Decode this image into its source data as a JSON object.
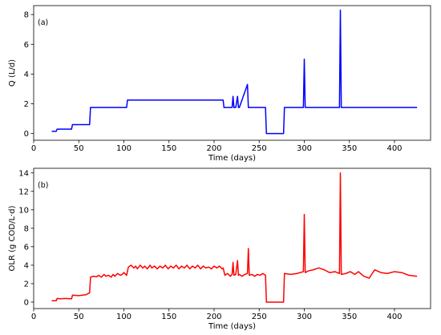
{
  "chart_data": [
    {
      "type": "line",
      "panel_label": "(a)",
      "xlabel": "Time (days)",
      "ylabel": "Q (L/d)",
      "xlim": [
        0,
        440
      ],
      "ylim": [
        -0.45,
        8.6
      ],
      "xticks": [
        0,
        50,
        100,
        150,
        200,
        250,
        300,
        350,
        400
      ],
      "yticks": [
        0,
        2,
        4,
        6,
        8
      ],
      "grid": false,
      "color": "#0000ff",
      "series": [
        {
          "x": [
            20,
            25,
            26,
            42,
            43,
            62,
            63,
            103,
            104,
            210,
            211,
            220,
            221,
            222,
            224,
            226,
            227,
            228,
            237,
            238,
            239,
            257,
            258,
            277,
            278,
            299,
            300,
            301,
            339,
            340,
            341,
            425
          ],
          "values": [
            0.15,
            0.15,
            0.3,
            0.3,
            0.6,
            0.6,
            1.75,
            1.75,
            2.25,
            2.25,
            1.75,
            1.75,
            2.5,
            1.75,
            1.75,
            2.5,
            1.75,
            1.75,
            3.3,
            1.75,
            1.75,
            1.75,
            0.0,
            0.0,
            1.75,
            1.75,
            5.0,
            1.75,
            1.75,
            8.3,
            1.75,
            1.75
          ]
        }
      ]
    },
    {
      "type": "line",
      "panel_label": "(b)",
      "xlabel": "Time (days)",
      "ylabel": "OLR (g COD/L·d)",
      "xlim": [
        0,
        440
      ],
      "ylim": [
        -0.7,
        14.5
      ],
      "xticks": [
        0,
        50,
        100,
        150,
        200,
        250,
        300,
        350,
        400
      ],
      "yticks": [
        0,
        2,
        4,
        6,
        8,
        10,
        12,
        14
      ],
      "grid": false,
      "color": "#ff0000",
      "series": [
        {
          "x": [
            20,
            25,
            26,
            30,
            35,
            42,
            43,
            50,
            58,
            62,
            63,
            66,
            70,
            72,
            75,
            78,
            80,
            83,
            86,
            88,
            90,
            93,
            96,
            98,
            100,
            103,
            105,
            108,
            111,
            113,
            115,
            118,
            121,
            123,
            126,
            129,
            131,
            134,
            137,
            140,
            143,
            146,
            149,
            152,
            155,
            158,
            161,
            164,
            167,
            170,
            173,
            176,
            179,
            182,
            185,
            188,
            191,
            194,
            197,
            200,
            203,
            206,
            209,
            210,
            212,
            215,
            218,
            220,
            221,
            222,
            224,
            226,
            227,
            228,
            231,
            234,
            237,
            238,
            239,
            242,
            245,
            248,
            251,
            254,
            257,
            258,
            277,
            278,
            285,
            292,
            299,
            300,
            301,
            305,
            310,
            316,
            322,
            328,
            334,
            339,
            340,
            341,
            346,
            351,
            356,
            360,
            366,
            372,
            378,
            385,
            392,
            400,
            408,
            416,
            425
          ],
          "values": [
            0.15,
            0.15,
            0.4,
            0.35,
            0.4,
            0.35,
            0.75,
            0.7,
            0.8,
            1.0,
            2.7,
            2.8,
            2.75,
            2.9,
            2.7,
            3.0,
            2.8,
            2.9,
            2.7,
            3.0,
            2.8,
            3.1,
            2.9,
            3.0,
            3.2,
            2.9,
            3.8,
            4.0,
            3.7,
            3.9,
            3.6,
            4.0,
            3.7,
            3.9,
            3.6,
            4.0,
            3.7,
            3.9,
            3.6,
            3.9,
            3.7,
            4.0,
            3.6,
            3.9,
            3.7,
            4.0,
            3.6,
            3.9,
            3.7,
            4.0,
            3.6,
            3.9,
            3.7,
            4.0,
            3.6,
            3.9,
            3.7,
            3.8,
            3.6,
            3.9,
            3.7,
            3.9,
            3.6,
            3.7,
            2.9,
            3.1,
            2.8,
            3.0,
            4.3,
            2.9,
            3.0,
            4.5,
            2.9,
            3.0,
            2.8,
            3.0,
            3.1,
            5.8,
            2.9,
            3.0,
            2.8,
            3.0,
            2.9,
            3.1,
            2.9,
            0.0,
            0.0,
            3.1,
            3.0,
            3.1,
            3.3,
            9.5,
            3.2,
            3.4,
            3.5,
            3.7,
            3.5,
            3.2,
            3.3,
            3.1,
            14.0,
            3.0,
            3.1,
            3.3,
            3.0,
            3.3,
            2.8,
            2.6,
            3.5,
            3.2,
            3.1,
            3.3,
            3.2,
            2.9,
            2.8
          ]
        }
      ]
    }
  ]
}
